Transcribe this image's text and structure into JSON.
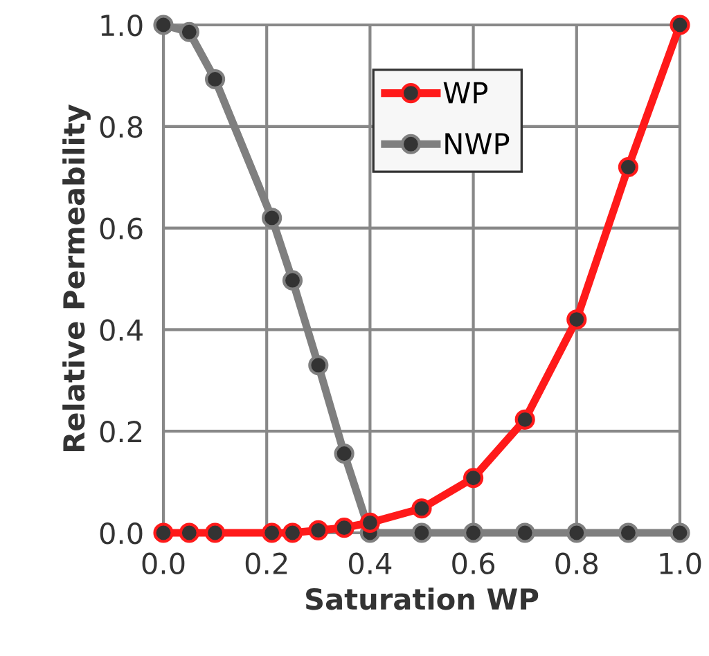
{
  "chart_data": {
    "type": "line",
    "xlabel": "Saturation WP",
    "ylabel": "Relative Permeability",
    "xlim": [
      0,
      1
    ],
    "ylim": [
      0,
      1
    ],
    "xticks": [
      {
        "value": 0,
        "label": "0.0"
      },
      0.2,
      0.4,
      0.6,
      0.8,
      {
        "value": 1,
        "label": "1.0"
      }
    ],
    "yticks": [
      {
        "value": 0,
        "label": "0.0"
      },
      0.2,
      0.4,
      0.6,
      0.8,
      {
        "value": 1,
        "label": "1.0"
      }
    ],
    "grid": true,
    "legend": "top",
    "marker": "circle",
    "line_style": "solid",
    "series": [
      {
        "name": "WP",
        "color": "#ff1a1a",
        "x": [
          0,
          0.05,
          0.1,
          0.21,
          0.25,
          0.3,
          0.35,
          0.4,
          0.5,
          0.6,
          0.7,
          0.8,
          0.9,
          1.0
        ],
        "values": [
          0,
          0,
          0,
          0,
          0,
          0.005,
          0.01,
          0.02,
          0.048,
          0.108,
          0.223,
          0.42,
          0.72,
          1.0
        ]
      },
      {
        "name": "NWP",
        "color": "#7f7f7f",
        "x": [
          0,
          0.05,
          0.1,
          0.21,
          0.25,
          0.3,
          0.35,
          0.4,
          0.5,
          0.6,
          0.7,
          0.8,
          0.9,
          1.0
        ],
        "values": [
          1.0,
          0.986,
          0.893,
          0.62,
          0.497,
          0.33,
          0.156,
          0,
          0,
          0,
          0,
          0,
          0,
          0
        ]
      }
    ]
  }
}
